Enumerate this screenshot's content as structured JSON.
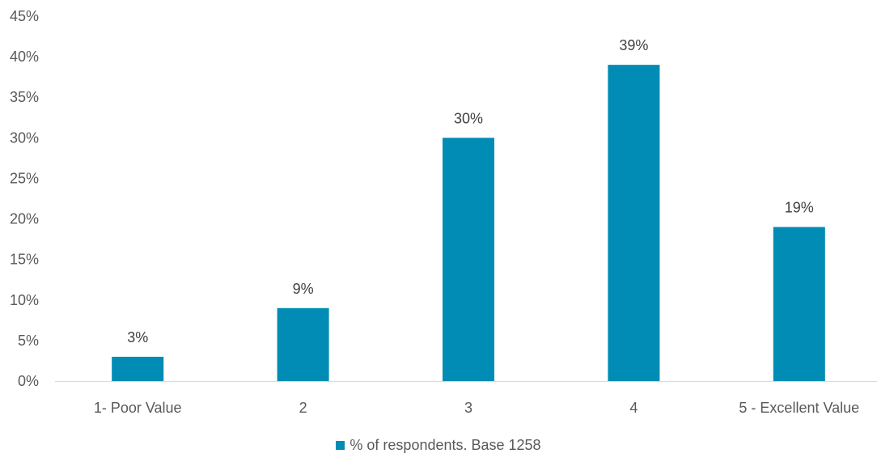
{
  "chart_data": {
    "type": "bar",
    "categories": [
      "1- Poor Value",
      "2",
      "3",
      "4",
      "5 - Excellent Value"
    ],
    "series": [
      {
        "name": "% of respondents. Base 1258",
        "values": [
          3,
          9,
          30,
          39,
          19
        ],
        "color": "#008CB4"
      }
    ],
    "data_labels": [
      "3%",
      "9%",
      "30%",
      "39%",
      "19%"
    ],
    "y_ticks": [
      "0%",
      "5%",
      "10%",
      "15%",
      "20%",
      "25%",
      "30%",
      "35%",
      "40%",
      "45%"
    ],
    "ylim": [
      0,
      45
    ],
    "title": "",
    "xlabel": "",
    "ylabel": "",
    "grid": false,
    "legend_position": "bottom"
  }
}
